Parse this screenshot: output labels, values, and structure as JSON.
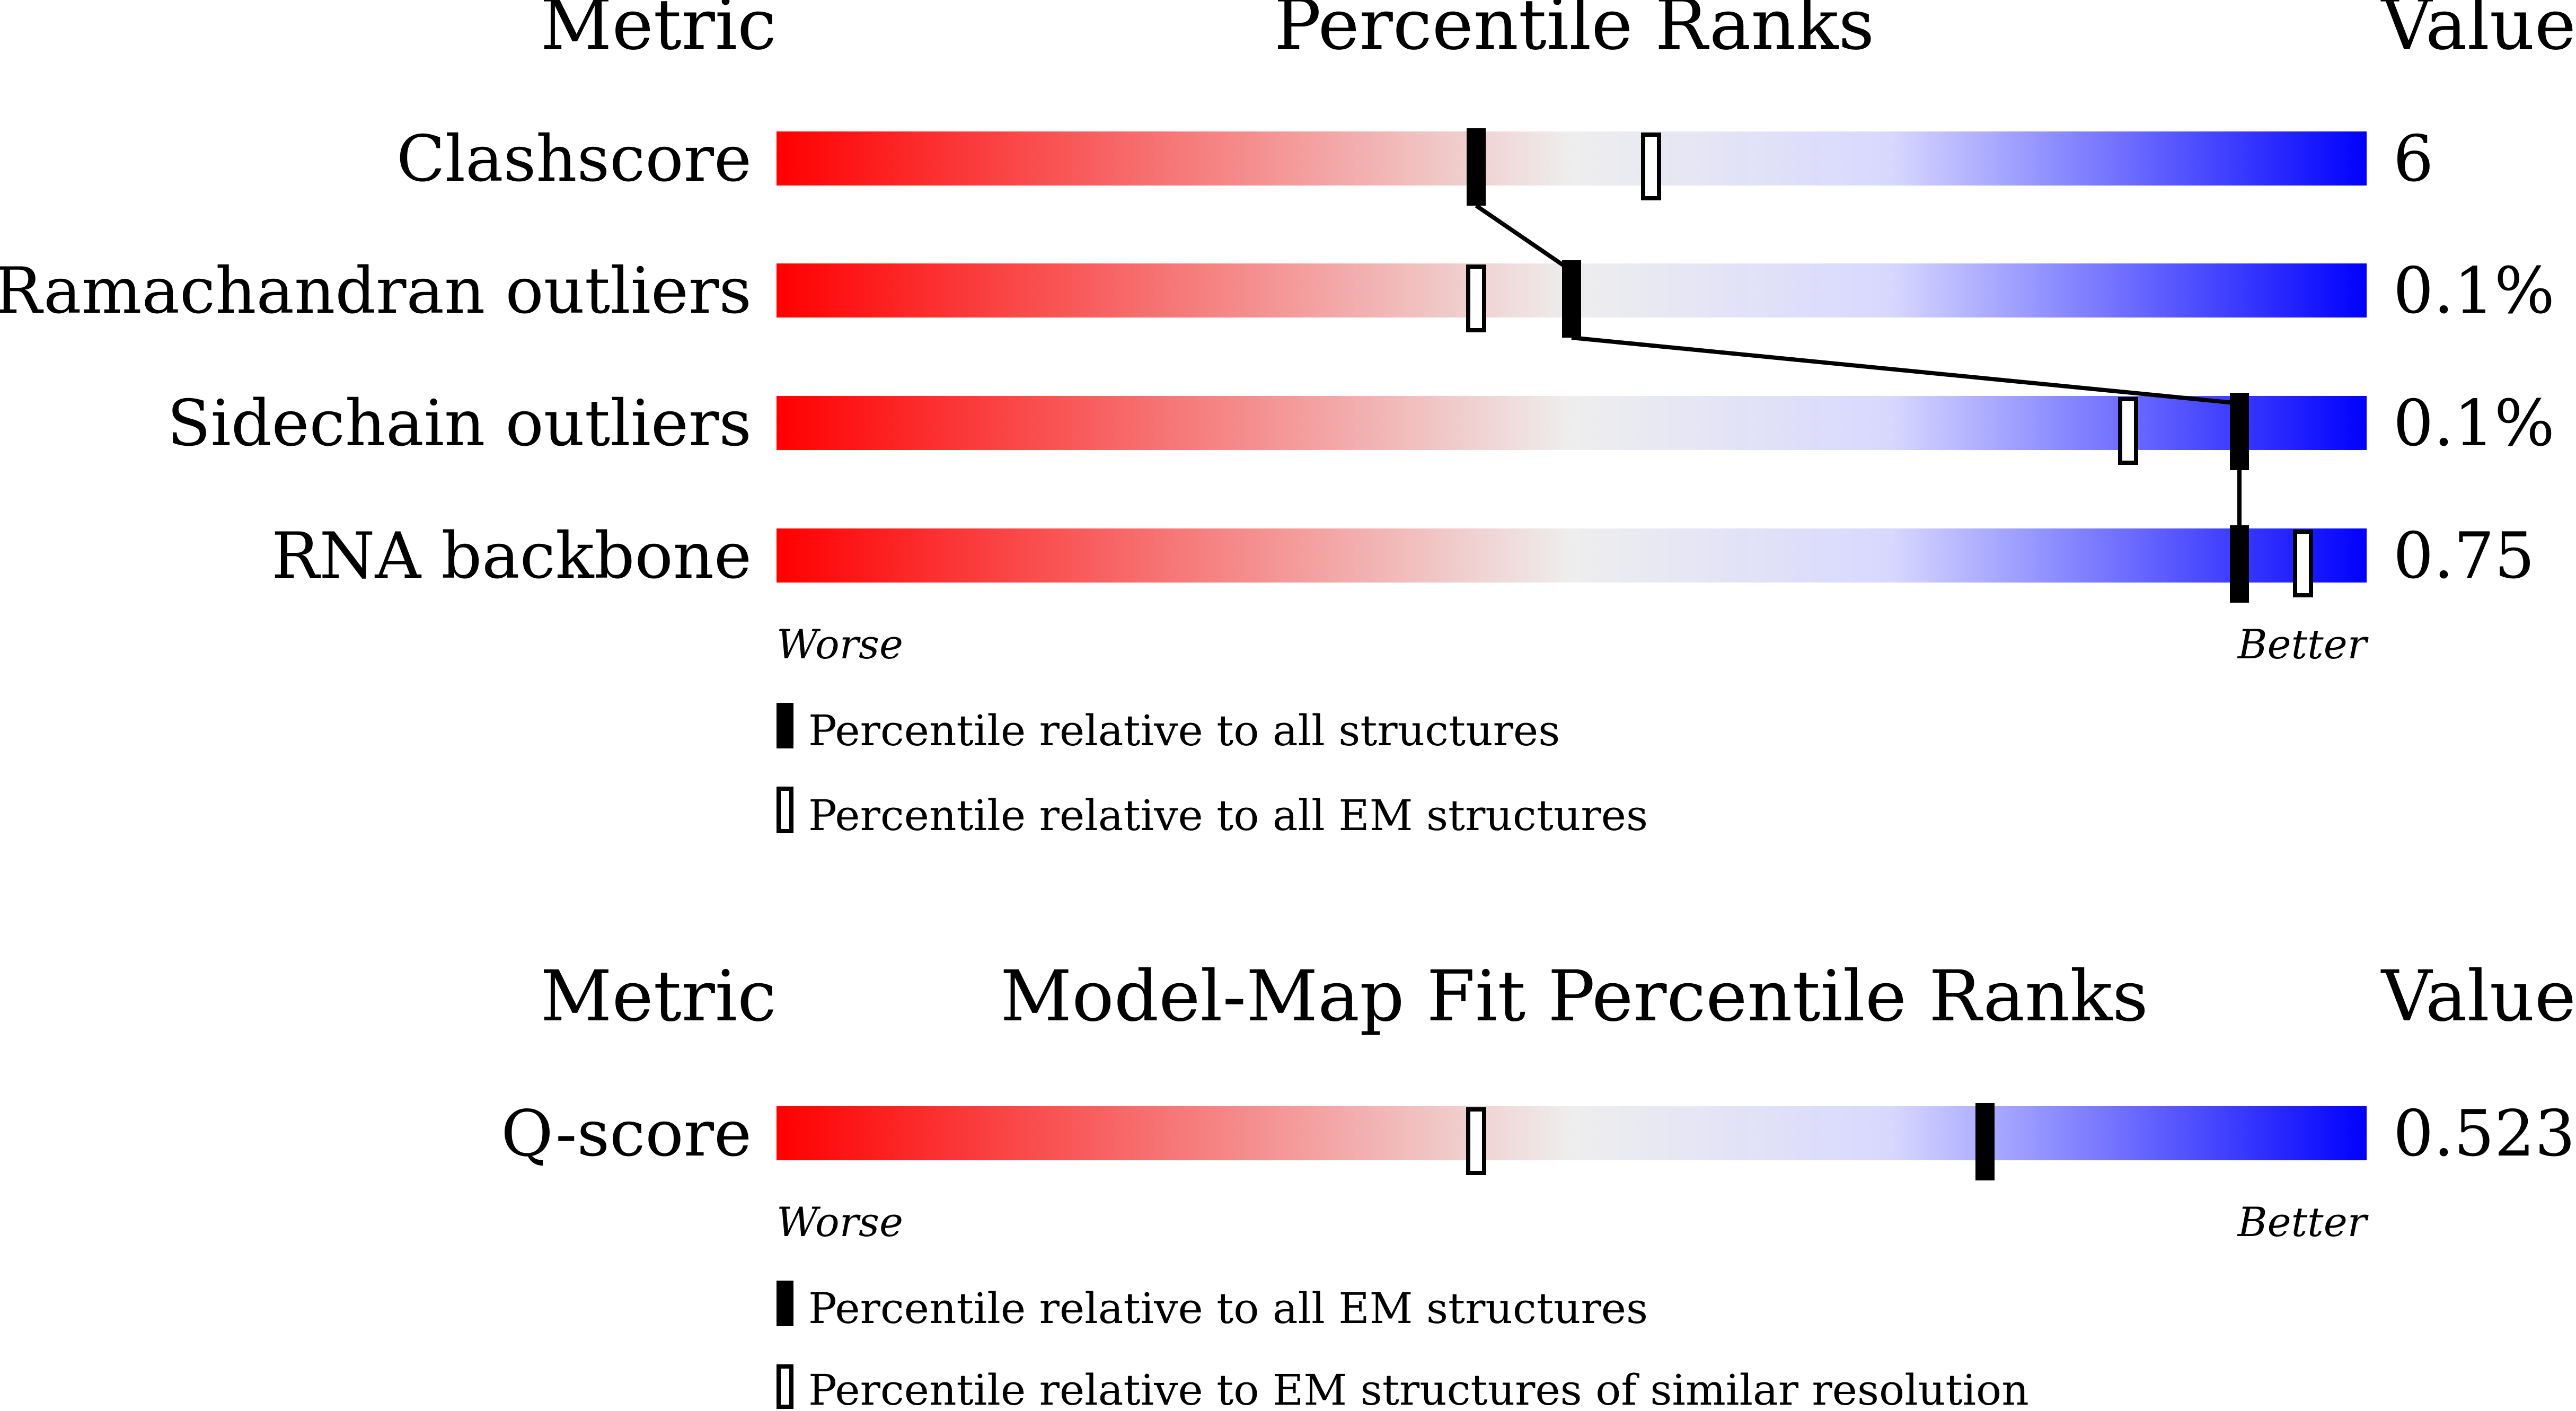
{
  "panel1": {
    "header_metric": "Metric",
    "header_title": "Percentile Ranks",
    "header_value": "Value",
    "worse_label": "Worse",
    "better_label": "Better",
    "legend_filled": "Percentile relative to all structures",
    "legend_open": "Percentile relative to all EM structures"
  },
  "panel2": {
    "header_metric": "Metric",
    "header_title": "Model-Map Fit Percentile Ranks",
    "header_value": "Value",
    "worse_label": "Worse",
    "better_label": "Better",
    "legend_filled": "Percentile relative to all EM structures",
    "legend_open": "Percentile relative to EM structures of similar resolution"
  },
  "colors": {
    "worse": "#ff0000",
    "mid": "#eeeeee",
    "better": "#0000ff",
    "marker": "#000000"
  },
  "chart_data": [
    {
      "type": "bar",
      "title": "Percentile Ranks",
      "xlim": [
        0,
        100
      ],
      "categories": [
        "Clashscore",
        "Ramachandran outliers",
        "Sidechain outliers",
        "RNA backbone"
      ],
      "values": [
        "6",
        "0.1%",
        "0.1%",
        "0.75"
      ],
      "series": [
        {
          "name": "Percentile relative to all structures",
          "marker": "filled",
          "values": [
            44,
            50,
            92,
            92
          ]
        },
        {
          "name": "Percentile relative to all EM structures",
          "marker": "open",
          "values": [
            55,
            44,
            85,
            96
          ]
        }
      ]
    },
    {
      "type": "bar",
      "title": "Model-Map Fit Percentile Ranks",
      "xlim": [
        0,
        100
      ],
      "categories": [
        "Q-score"
      ],
      "values": [
        "0.523"
      ],
      "series": [
        {
          "name": "Percentile relative to all EM structures",
          "marker": "filled",
          "values": [
            76
          ]
        },
        {
          "name": "Percentile relative to EM structures of similar resolution",
          "marker": "open",
          "values": [
            44
          ]
        }
      ]
    }
  ]
}
